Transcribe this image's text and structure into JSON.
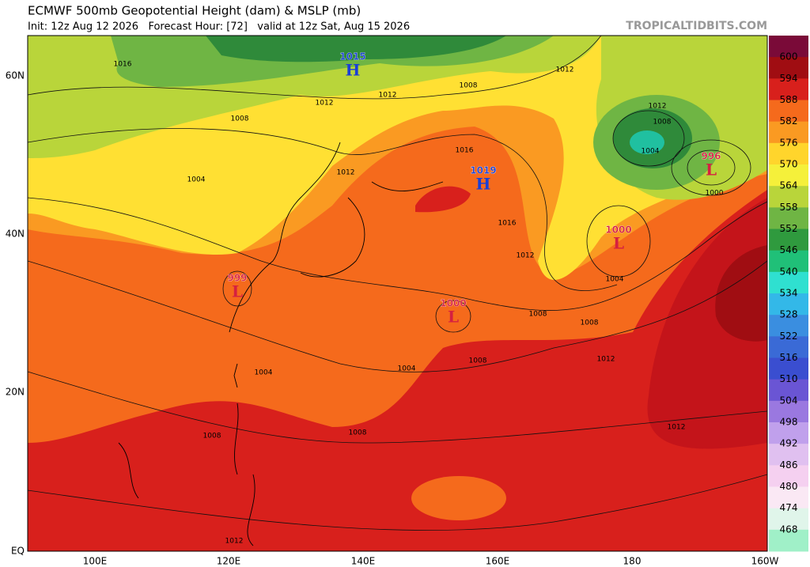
{
  "header": {
    "title": "ECMWF 500mb Geopotential Height (dam) & MSLP (mb)",
    "subtitle": "Init: 12z Aug 12 2026   Forecast Hour: [72]   valid at 12z Sat, Aug 15 2026",
    "credit": "TROPICALTIDBITS.COM"
  },
  "map": {
    "lat_labels": [
      "60N",
      "40N",
      "20N",
      "EQ"
    ],
    "lon_labels": [
      "100E",
      "120E",
      "140E",
      "160E",
      "180",
      "160W"
    ],
    "centers": [
      {
        "letter": "H",
        "value": "1015",
        "color": "#1a3fd6"
      },
      {
        "letter": "H",
        "value": "1019",
        "color": "#1a3fd6"
      },
      {
        "letter": "L",
        "value": "999",
        "color": "#d62040"
      },
      {
        "letter": "L",
        "value": "1000",
        "color": "#d62040"
      },
      {
        "letter": "L",
        "value": "1000",
        "color": "#d62040"
      },
      {
        "letter": "L",
        "value": "996",
        "color": "#d62040"
      }
    ],
    "isobar_labels": [
      "1016",
      "1012",
      "1008",
      "1004",
      "1012",
      "1016",
      "1016",
      "1012",
      "1008",
      "1008",
      "1012",
      "1004",
      "1012",
      "1008",
      "1004",
      "1000",
      "1004",
      "1004",
      "1008",
      "1008",
      "1012",
      "1012",
      "1008",
      "1012",
      "1012",
      "1008"
    ]
  },
  "colorbar": {
    "labels": [
      "600",
      "594",
      "588",
      "582",
      "576",
      "570",
      "564",
      "558",
      "552",
      "546",
      "540",
      "534",
      "528",
      "522",
      "516",
      "510",
      "504",
      "498",
      "492",
      "486",
      "480",
      "474",
      "468"
    ],
    "colors": [
      "#7a0a38",
      "#a00d12",
      "#d8201c",
      "#f56a1c",
      "#fa9a22",
      "#ffd52c",
      "#f5f03a",
      "#b9d53a",
      "#6fb544",
      "#2f9a3e",
      "#20c078",
      "#2fe0d0",
      "#33b8e8",
      "#3a8ee0",
      "#3a6ad6",
      "#3a4ed0",
      "#6a55d4",
      "#9a78e0",
      "#c0a0ec",
      "#e0c0f0",
      "#f5d0f0",
      "#fae8f4",
      "#e0f5ea",
      "#a0f0c8"
    ]
  }
}
